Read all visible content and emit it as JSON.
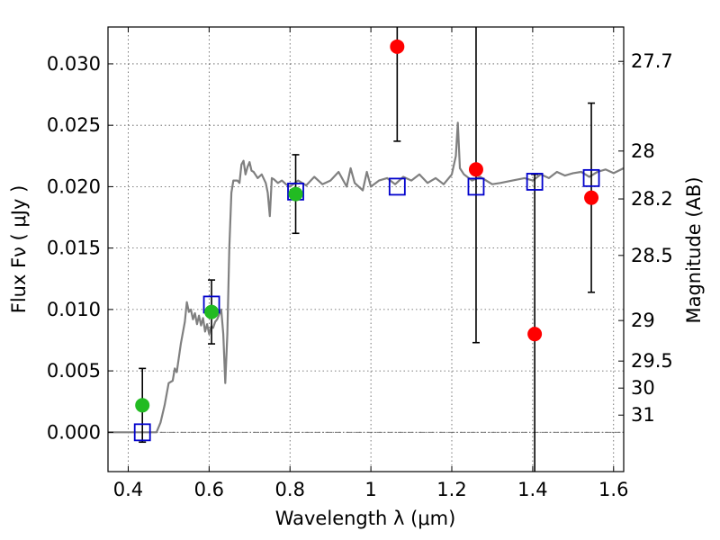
{
  "chart_data": {
    "type": "scatter",
    "xlabel": "Wavelength  λ (μm)",
    "ylabel": "Flux  Fν  ( μJy )",
    "y2label": "Magnitude (AB)",
    "xlim": [
      0.35,
      1.625
    ],
    "ylim": [
      -0.0032,
      0.033
    ],
    "grid": true,
    "x_ticks": [
      {
        "value": 0.4,
        "label": "0.4"
      },
      {
        "value": 0.6,
        "label": "0.6"
      },
      {
        "value": 0.8,
        "label": "0.8"
      },
      {
        "value": 1.0,
        "label": "1"
      },
      {
        "value": 1.2,
        "label": "1.2"
      },
      {
        "value": 1.4,
        "label": "1.4"
      },
      {
        "value": 1.6,
        "label": "1.6"
      }
    ],
    "y_ticks": [
      {
        "value": 0.0,
        "label": "0.000"
      },
      {
        "value": 0.005,
        "label": "0.005"
      },
      {
        "value": 0.01,
        "label": "0.010"
      },
      {
        "value": 0.015,
        "label": "0.015"
      },
      {
        "value": 0.02,
        "label": "0.020"
      },
      {
        "value": 0.025,
        "label": "0.025"
      },
      {
        "value": 0.03,
        "label": "0.030"
      }
    ],
    "y2_ticks": [
      {
        "flux": 0.0302,
        "label": "27.7"
      },
      {
        "flux": 0.0229,
        "label": "28"
      },
      {
        "flux": 0.019,
        "label": "28.2"
      },
      {
        "flux": 0.0144,
        "label": "28.5"
      },
      {
        "flux": 0.0091,
        "label": "29"
      },
      {
        "flux": 0.0058,
        "label": "29.5"
      },
      {
        "flux": 0.0036,
        "label": "30"
      },
      {
        "flux": 0.0014,
        "label": "31"
      }
    ],
    "model_spectrum": {
      "color": "#808080",
      "points": [
        [
          0.35,
          0.0
        ],
        [
          0.47,
          0.0
        ],
        [
          0.48,
          0.0008
        ],
        [
          0.49,
          0.0022
        ],
        [
          0.5,
          0.004
        ],
        [
          0.51,
          0.0042
        ],
        [
          0.515,
          0.0052
        ],
        [
          0.52,
          0.0049
        ],
        [
          0.53,
          0.0072
        ],
        [
          0.54,
          0.009
        ],
        [
          0.545,
          0.0106
        ],
        [
          0.55,
          0.0098
        ],
        [
          0.555,
          0.01
        ],
        [
          0.56,
          0.0092
        ],
        [
          0.565,
          0.0097
        ],
        [
          0.57,
          0.0088
        ],
        [
          0.575,
          0.0095
        ],
        [
          0.58,
          0.0087
        ],
        [
          0.585,
          0.0093
        ],
        [
          0.59,
          0.0082
        ],
        [
          0.595,
          0.0088
        ],
        [
          0.6,
          0.008
        ],
        [
          0.605,
          0.0086
        ],
        [
          0.61,
          0.0085
        ],
        [
          0.615,
          0.009
        ],
        [
          0.62,
          0.0092
        ],
        [
          0.63,
          0.01
        ],
        [
          0.635,
          0.008
        ],
        [
          0.64,
          0.004
        ],
        [
          0.645,
          0.008
        ],
        [
          0.65,
          0.015
        ],
        [
          0.655,
          0.0195
        ],
        [
          0.66,
          0.0205
        ],
        [
          0.67,
          0.0205
        ],
        [
          0.675,
          0.0203
        ],
        [
          0.68,
          0.0218
        ],
        [
          0.685,
          0.0221
        ],
        [
          0.69,
          0.021
        ],
        [
          0.695,
          0.0216
        ],
        [
          0.7,
          0.022
        ],
        [
          0.705,
          0.0213
        ],
        [
          0.71,
          0.0212
        ],
        [
          0.72,
          0.0207
        ],
        [
          0.73,
          0.021
        ],
        [
          0.74,
          0.0203
        ],
        [
          0.745,
          0.0195
        ],
        [
          0.75,
          0.0176
        ],
        [
          0.755,
          0.0207
        ],
        [
          0.76,
          0.0206
        ],
        [
          0.77,
          0.0203
        ],
        [
          0.78,
          0.0205
        ],
        [
          0.79,
          0.0202
        ],
        [
          0.8,
          0.02
        ],
        [
          0.82,
          0.0205
        ],
        [
          0.84,
          0.0201
        ],
        [
          0.86,
          0.0208
        ],
        [
          0.88,
          0.0202
        ],
        [
          0.9,
          0.0205
        ],
        [
          0.92,
          0.0212
        ],
        [
          0.94,
          0.02
        ],
        [
          0.95,
          0.0215
        ],
        [
          0.96,
          0.0203
        ],
        [
          0.98,
          0.0197
        ],
        [
          0.99,
          0.0212
        ],
        [
          1.0,
          0.02
        ],
        [
          1.02,
          0.0205
        ],
        [
          1.04,
          0.0207
        ],
        [
          1.06,
          0.0202
        ],
        [
          1.08,
          0.0208
        ],
        [
          1.1,
          0.0205
        ],
        [
          1.12,
          0.021
        ],
        [
          1.14,
          0.0203
        ],
        [
          1.16,
          0.0207
        ],
        [
          1.18,
          0.0202
        ],
        [
          1.2,
          0.021
        ],
        [
          1.21,
          0.0225
        ],
        [
          1.215,
          0.0252
        ],
        [
          1.22,
          0.0215
        ],
        [
          1.23,
          0.021
        ],
        [
          1.25,
          0.0205
        ],
        [
          1.27,
          0.0208
        ],
        [
          1.3,
          0.0202
        ],
        [
          1.32,
          0.0203
        ],
        [
          1.35,
          0.0205
        ],
        [
          1.38,
          0.0207
        ],
        [
          1.4,
          0.0205
        ],
        [
          1.42,
          0.021
        ],
        [
          1.44,
          0.0207
        ],
        [
          1.46,
          0.0212
        ],
        [
          1.48,
          0.0209
        ],
        [
          1.5,
          0.0211
        ],
        [
          1.52,
          0.0212
        ],
        [
          1.54,
          0.0208
        ],
        [
          1.56,
          0.0212
        ],
        [
          1.58,
          0.0214
        ],
        [
          1.6,
          0.0211
        ],
        [
          1.625,
          0.0215
        ]
      ]
    },
    "series": [
      {
        "marker": "open-square",
        "color": "#0000cc",
        "points": [
          {
            "x": 0.435,
            "y": 0.0
          },
          {
            "x": 0.606,
            "y": 0.0104
          },
          {
            "x": 0.814,
            "y": 0.0196
          },
          {
            "x": 1.065,
            "y": 0.02
          },
          {
            "x": 1.26,
            "y": 0.02
          },
          {
            "x": 1.405,
            "y": 0.0204
          },
          {
            "x": 1.545,
            "y": 0.0207
          }
        ]
      },
      {
        "marker": "filled-circle",
        "color": "#22bb22",
        "points": [
          {
            "x": 0.435,
            "y": 0.0022,
            "yerr": 0.003
          },
          {
            "x": 0.606,
            "y": 0.0098,
            "yerr": 0.0026
          },
          {
            "x": 0.814,
            "y": 0.0194,
            "yerr": 0.0032
          }
        ]
      },
      {
        "marker": "filled-circle",
        "color": "#ff0000",
        "points": [
          {
            "x": 1.065,
            "y": 0.0314,
            "yerr": 0.0077
          },
          {
            "x": 1.26,
            "y": 0.0214,
            "yerr": 0.0141
          },
          {
            "x": 1.405,
            "y": 0.008,
            "yerr": 0.013
          },
          {
            "x": 1.545,
            "y": 0.0191,
            "yerr": 0.0077
          }
        ]
      }
    ],
    "reference_line": {
      "y": 0.0,
      "style": "dash-dot"
    }
  }
}
